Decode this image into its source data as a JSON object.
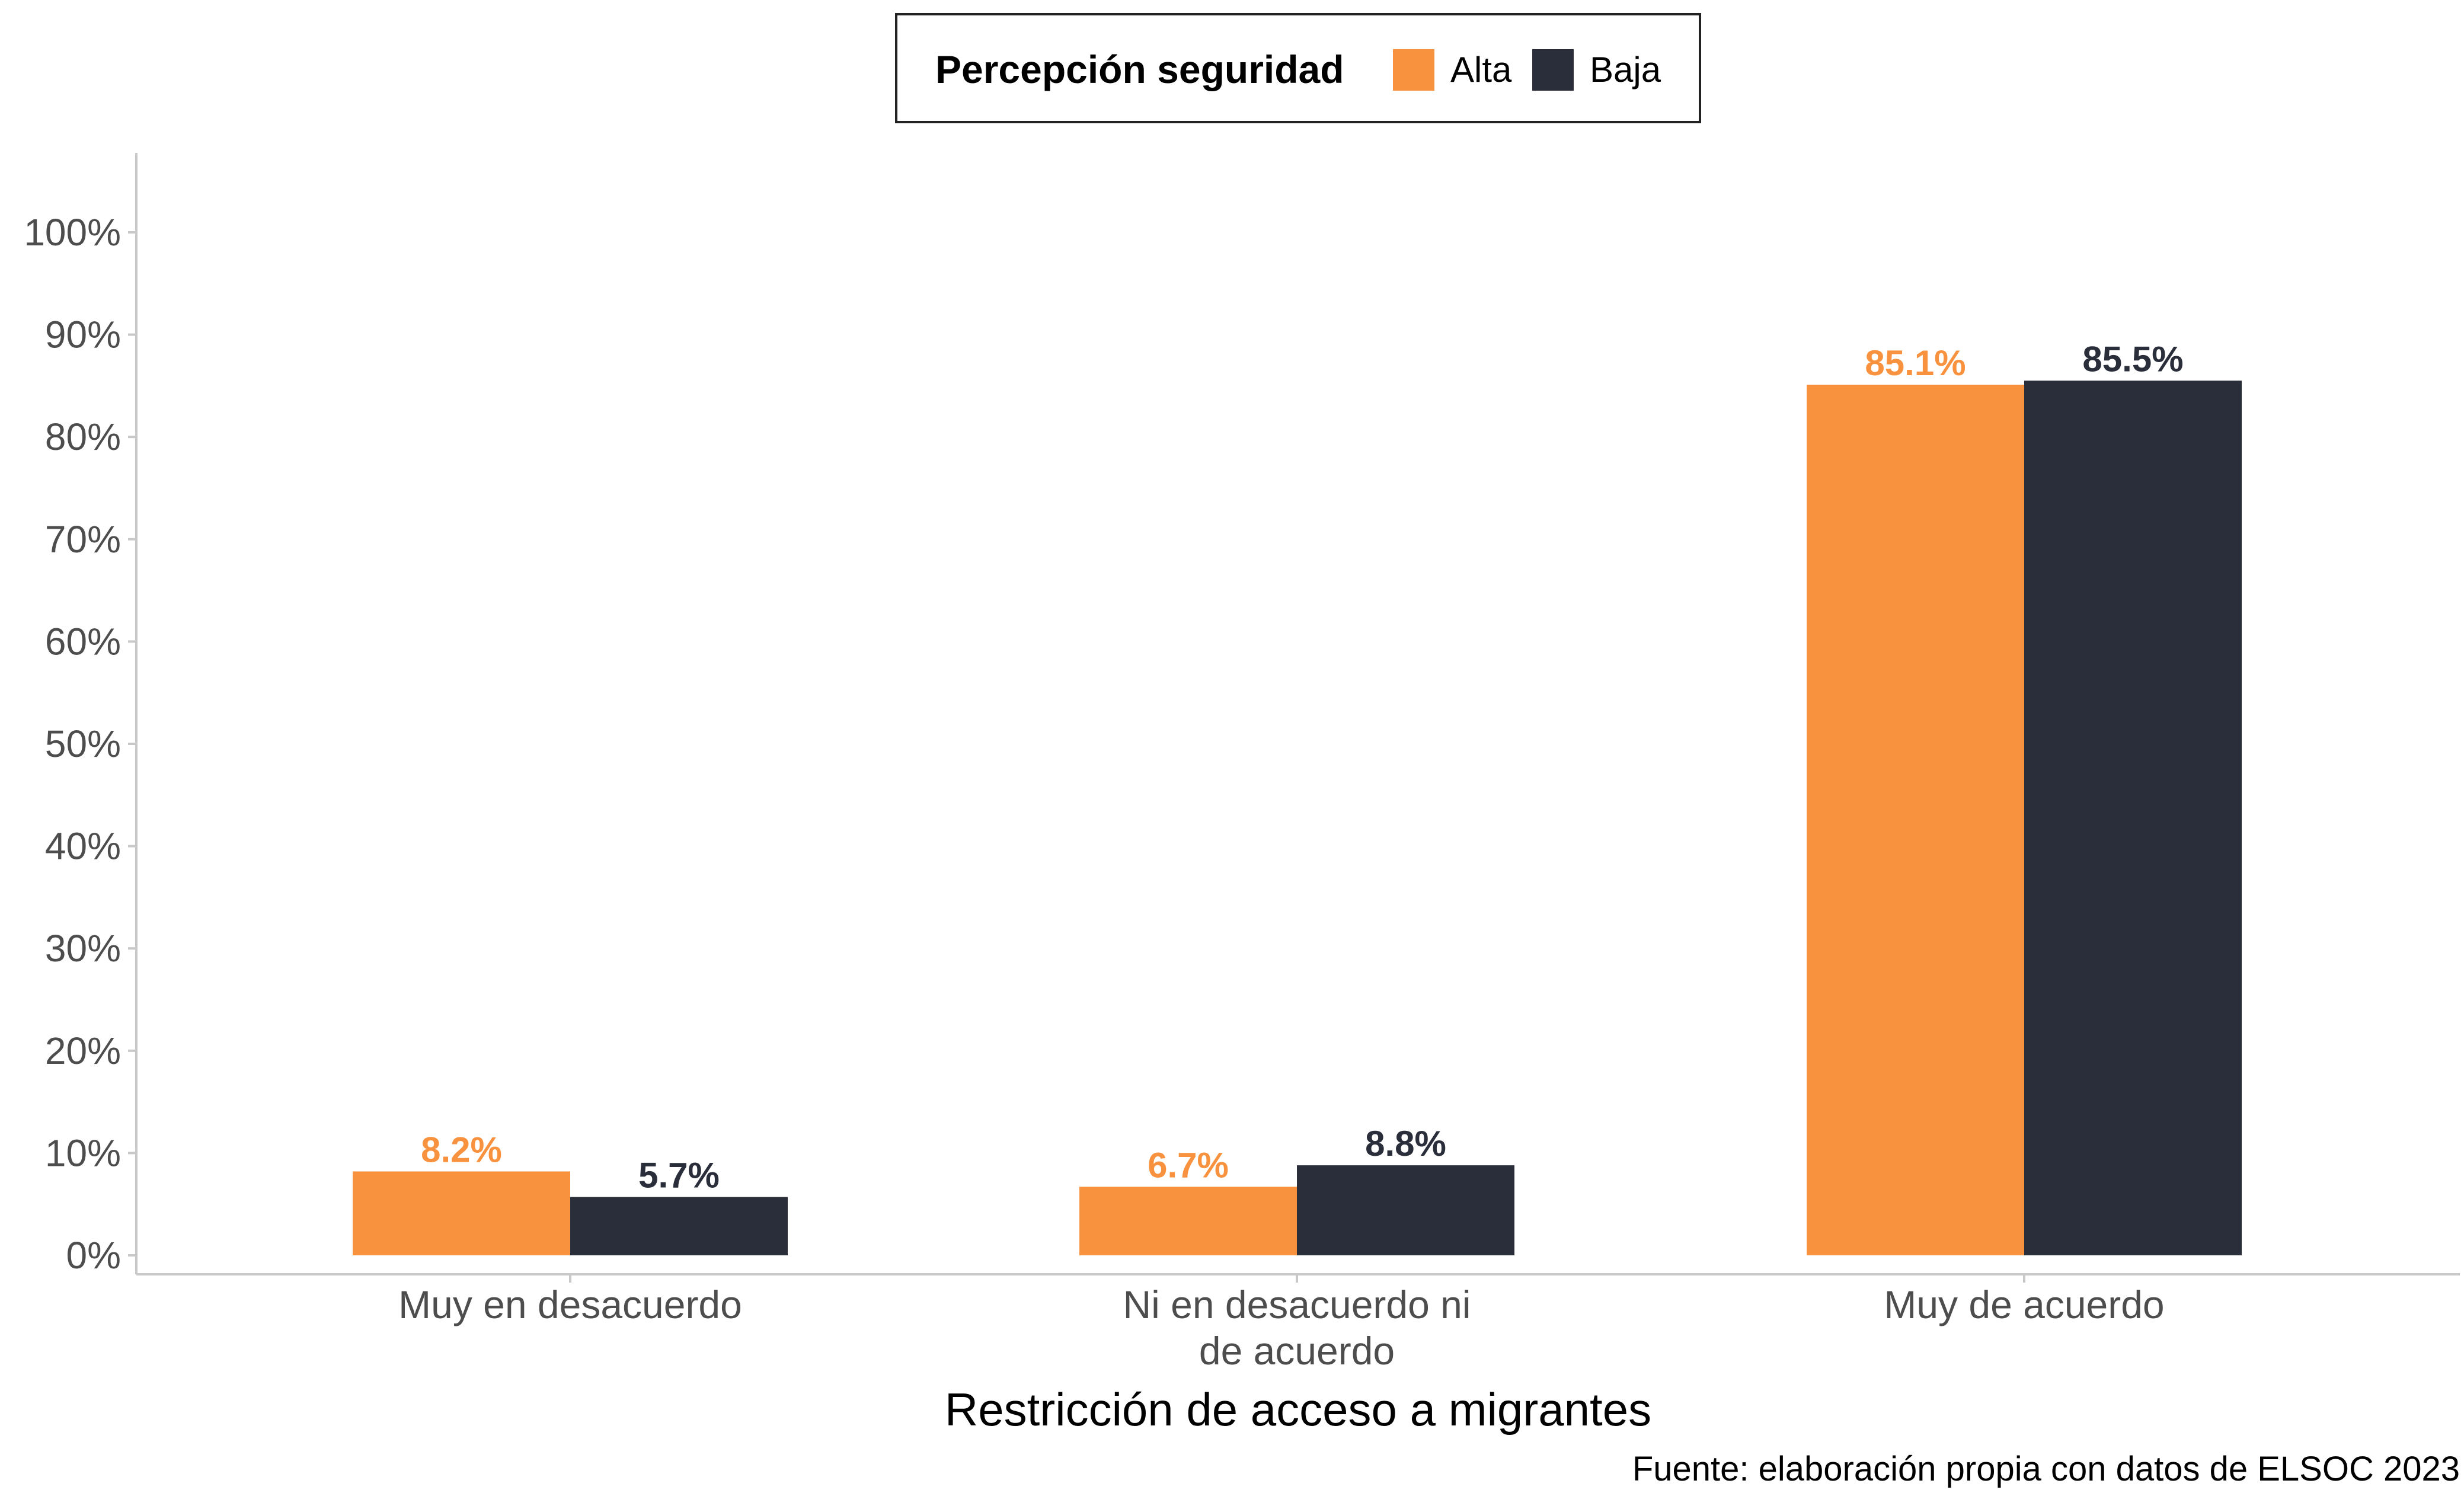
{
  "chart_data": {
    "type": "bar",
    "title": "",
    "xlabel": "Restricción de acceso a migrantes",
    "ylabel": "",
    "caption": "Fuente: elaboración propia con datos de ELSOC 2023",
    "categories": [
      [
        "Muy en desacuerdo"
      ],
      [
        "Ni en desacuerdo ni",
        "de acuerdo"
      ],
      [
        "Muy de acuerdo"
      ]
    ],
    "series": [
      {
        "name": "Alta",
        "color": "#F9923E",
        "values": [
          8.2,
          6.7,
          85.1
        ],
        "labels": [
          "8.2%",
          "6.7%",
          "85.1%"
        ]
      },
      {
        "name": "Baja",
        "color": "#2A2E3B",
        "values": [
          5.7,
          8.8,
          85.5
        ],
        "labels": [
          "5.7%",
          "8.8%",
          "85.5%"
        ]
      }
    ],
    "legend": {
      "title": "Percepción seguridad",
      "position": "top"
    },
    "ylim": [
      0,
      100
    ],
    "yticks": [
      0,
      10,
      20,
      30,
      40,
      50,
      60,
      70,
      80,
      90,
      100
    ],
    "ytick_labels": [
      "0%",
      "10%",
      "20%",
      "30%",
      "40%",
      "50%",
      "60%",
      "70%",
      "80%",
      "90%",
      "100%"
    ],
    "grid": false
  }
}
